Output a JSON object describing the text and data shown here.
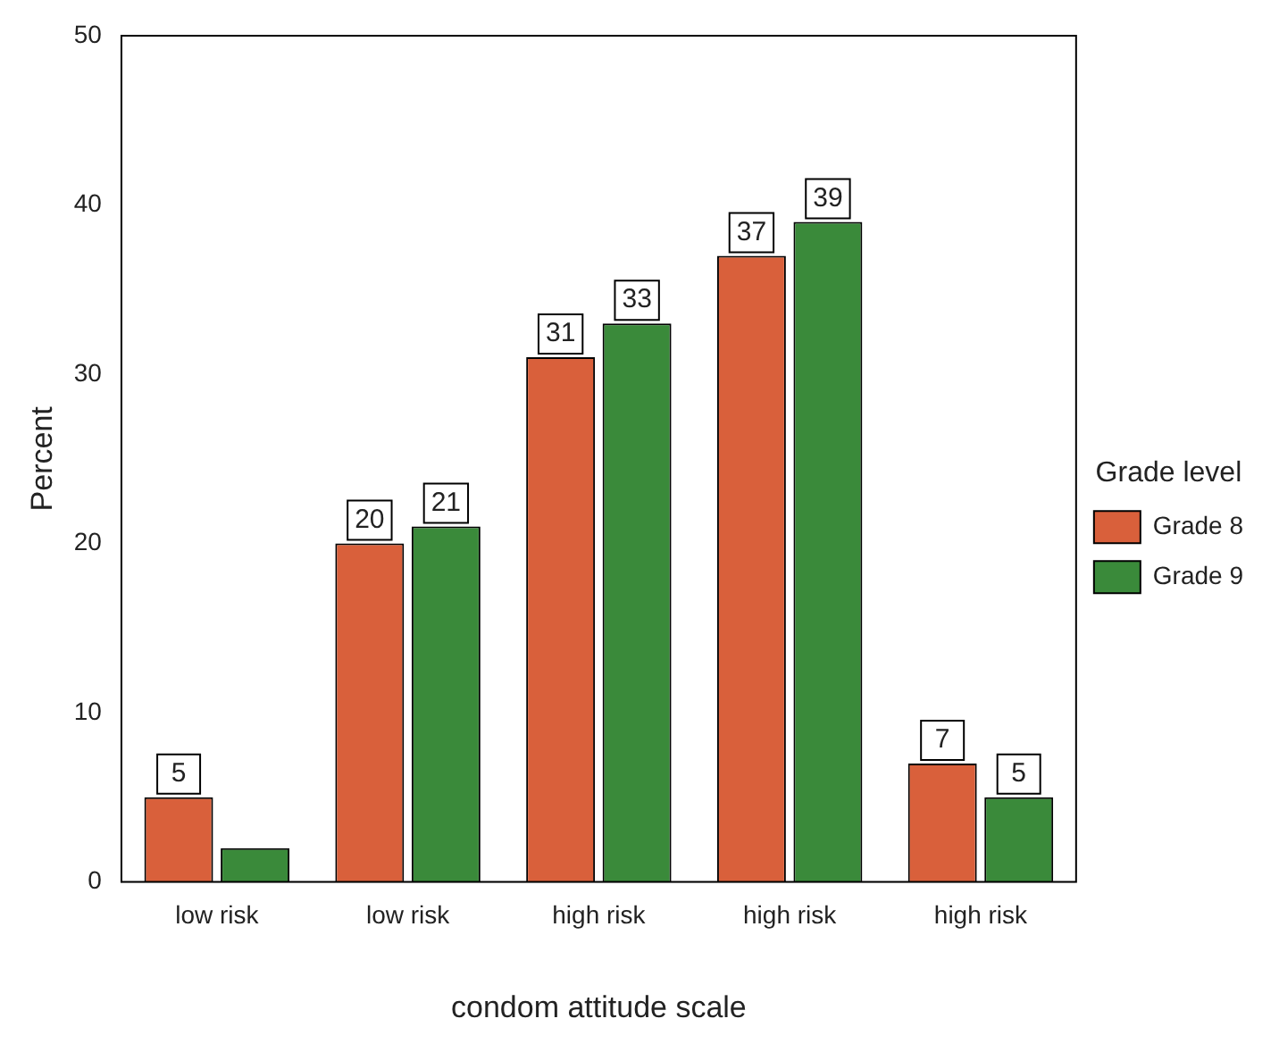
{
  "chart_data": {
    "type": "bar",
    "xlabel": "condom attitude scale",
    "ylabel": "Percent",
    "legend_title": "Grade level",
    "categories": [
      "low risk",
      "low risk",
      "high risk",
      "high risk",
      "high risk"
    ],
    "series": [
      {
        "name": "Grade 8",
        "color": "#d9603b",
        "values": [
          5,
          20,
          31,
          37,
          7
        ],
        "value_labels": [
          "5",
          "20",
          "31",
          "37",
          "7"
        ]
      },
      {
        "name": "Grade 9",
        "color": "#3a8a3a",
        "values": [
          2,
          21,
          33,
          39,
          5
        ],
        "value_labels": [
          null,
          "21",
          "33",
          "39",
          "5"
        ]
      }
    ],
    "ylim": [
      0,
      50
    ],
    "yticks": [
      0,
      10,
      20,
      30,
      40,
      50
    ],
    "grid": false,
    "legend": "right"
  }
}
